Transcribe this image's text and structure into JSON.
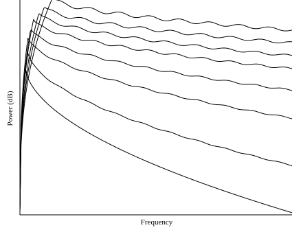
{
  "chart_data": {
    "type": "line",
    "title": "",
    "xlabel": "Frequency",
    "ylabel": "Power (dB)",
    "grid": false,
    "legend": "none",
    "x_ticks": false,
    "y_ticks": false,
    "colors": {
      "series": "#000000",
      "axis": "#000000",
      "background": "#ffffff"
    },
    "xlim": [
      0,
      1
    ],
    "ylim": [
      0,
      1
    ],
    "series": [
      {
        "peak_x": 0.02,
        "peak": 0.69,
        "end": 0.01,
        "ripple": 0.0,
        "period": 0.1
      },
      {
        "peak_x": 0.03,
        "peak": 0.76,
        "end": 0.23,
        "ripple": 0.003,
        "period": 0.1
      },
      {
        "peak_x": 0.03,
        "peak": 0.83,
        "end": 0.45,
        "ripple": 0.004,
        "period": 0.1
      },
      {
        "peak_x": 0.04,
        "peak": 0.87,
        "end": 0.58,
        "ripple": 0.005,
        "period": 0.1
      },
      {
        "peak_x": 0.05,
        "peak": 0.91,
        "end": 0.68,
        "ripple": 0.006,
        "period": 0.1
      },
      {
        "peak_x": 0.07,
        "peak": 0.94,
        "end": 0.74,
        "ripple": 0.007,
        "period": 0.11
      },
      {
        "peak_x": 0.09,
        "peak": 0.97,
        "end": 0.8,
        "ripple": 0.008,
        "period": 0.11
      },
      {
        "peak_x": 0.12,
        "peak": 1.01,
        "end": 0.86,
        "ripple": 0.009,
        "period": 0.11
      }
    ]
  }
}
